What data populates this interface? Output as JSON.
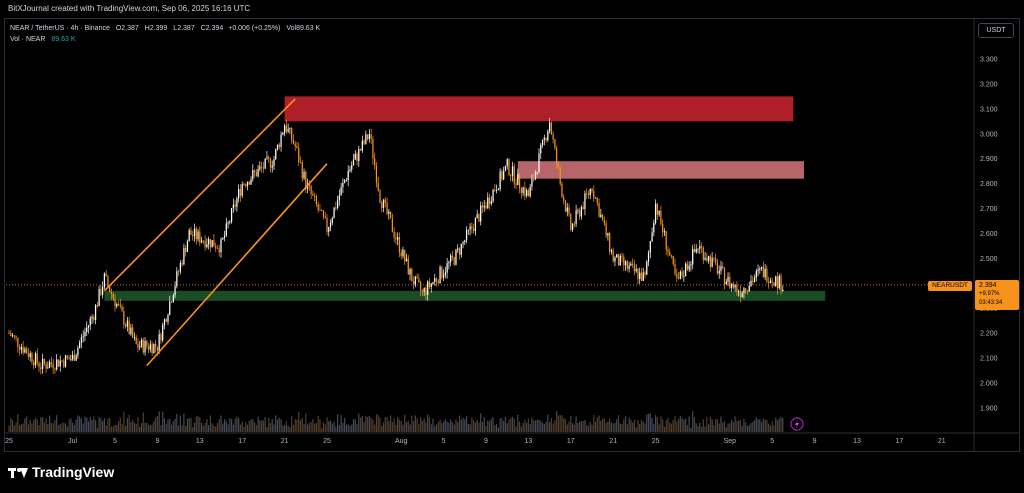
{
  "header": {
    "credit": "BitXJournal created with TradingView.com, Sep 06, 2025 16:16 UTC"
  },
  "symbol": {
    "name": "NEAR / TetherUS · 4h · Binance",
    "open_label": "O",
    "open": "2.387",
    "high_label": "H",
    "high": "2.399",
    "low_label": "L",
    "low": "2.387",
    "close_label": "C",
    "close": "2.394",
    "change": "+0.006 (+0.25%)",
    "vol_label": "Vol",
    "vol": "89.63 K"
  },
  "volume_indicator": {
    "label": "Vol · NEAR",
    "value": "89.63 K"
  },
  "currency_button": "USDT",
  "price_tag": {
    "symbol": "NEARUSDT",
    "price": "2.394",
    "change": "+9.97%",
    "countdown": "03:43:34"
  },
  "footer": {
    "brand": "TradingView"
  },
  "colors": {
    "up": "#ffffff",
    "down": "#f7931a",
    "volume": "#3a3f4b",
    "resistance": "#b7212c",
    "mid_resistance": "#c06b6f",
    "support": "#1e5a2b",
    "channel": "#f7931a",
    "accent": "#f7931a",
    "grid": "#2a2e39"
  },
  "chart_data": {
    "type": "candlestick",
    "title": "NEAR / TetherUS · 4h · Binance",
    "ylabel": "USDT",
    "ylim": [
      1.8,
      3.3
    ],
    "y_ticks": [
      "3.300",
      "3.200",
      "3.100",
      "3.000",
      "2.900",
      "2.800",
      "2.700",
      "2.600",
      "2.500",
      "2.400",
      "2.300",
      "2.200",
      "2.100",
      "2.000",
      "1.900"
    ],
    "x_ticks": [
      "25",
      "Jul",
      "5",
      "9",
      "13",
      "17",
      "21",
      "25",
      "Aug",
      "5",
      "9",
      "13",
      "17",
      "21",
      "25",
      "Sep",
      "5",
      "9",
      "13",
      "17",
      "21"
    ],
    "price_path": [
      [
        "Jun 25",
        2.2
      ],
      [
        "Jun 28",
        2.07
      ],
      [
        "Jul 1",
        2.1
      ],
      [
        "Jul 3",
        2.28
      ],
      [
        "Jul 4",
        2.42
      ],
      [
        "Jul 7",
        2.15
      ],
      [
        "Jul 9",
        2.15
      ],
      [
        "Jul 11",
        2.45
      ],
      [
        "Jul 12",
        2.6
      ],
      [
        "Jul 15",
        2.55
      ],
      [
        "Jul 17",
        2.8
      ],
      [
        "Jul 20",
        2.9
      ],
      [
        "Jul 21",
        3.04
      ],
      [
        "Jul 22",
        2.95
      ],
      [
        "Jul 23",
        2.8
      ],
      [
        "Jul 25",
        2.62
      ],
      [
        "Jul 27",
        2.85
      ],
      [
        "Jul 29",
        3.0
      ],
      [
        "Jul 30",
        2.75
      ],
      [
        "Aug 2",
        2.42
      ],
      [
        "Aug 3",
        2.36
      ],
      [
        "Aug 6",
        2.5
      ],
      [
        "Aug 9",
        2.72
      ],
      [
        "Aug 11",
        2.87
      ],
      [
        "Aug 13",
        2.75
      ],
      [
        "Aug 15",
        3.05
      ],
      [
        "Aug 16",
        2.8
      ],
      [
        "Aug 17",
        2.62
      ],
      [
        "Aug 19",
        2.79
      ],
      [
        "Aug 21",
        2.5
      ],
      [
        "Aug 24",
        2.42
      ],
      [
        "Aug 25",
        2.72
      ],
      [
        "Aug 27",
        2.4
      ],
      [
        "Aug 29",
        2.55
      ],
      [
        "Sep 1",
        2.4
      ],
      [
        "Sep 2",
        2.37
      ],
      [
        "Sep 4",
        2.45
      ],
      [
        "Sep 6",
        2.394
      ]
    ],
    "zones": [
      {
        "name": "resistance",
        "from": 3.05,
        "to": 3.15,
        "x_from": "Jul 21",
        "x_to": "Sep 7"
      },
      {
        "name": "mid-resistance",
        "from": 2.82,
        "to": 2.89,
        "x_from": "Aug 12",
        "x_to": "Sep 8"
      },
      {
        "name": "support",
        "from": 2.33,
        "to": 2.37,
        "x_from": "Jul 4",
        "x_to": "Sep 10"
      }
    ],
    "channel": {
      "upper": [
        [
          "Jul 4",
          2.37
        ],
        [
          "Jul 22",
          3.14
        ]
      ],
      "lower": [
        [
          "Jul 8",
          2.07
        ],
        [
          "Jul 25",
          2.88
        ]
      ]
    },
    "last_price": 2.394,
    "grid": false
  }
}
